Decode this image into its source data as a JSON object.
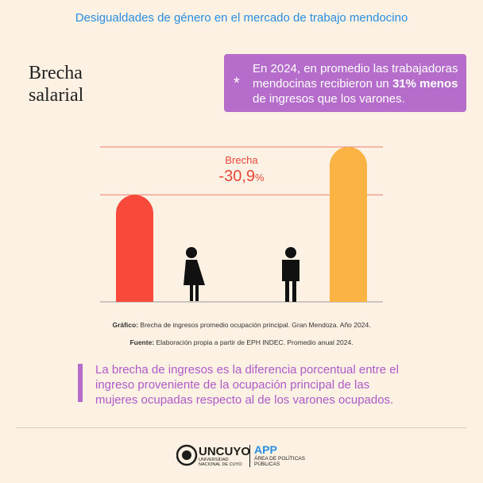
{
  "header": {
    "title": "Desigualdades de género en el mercado de trabajo mendocino"
  },
  "section_title": "Brecha salarial",
  "callout": {
    "text_before": "En 2024, en promedio las trabajadoras mendocinas recibieron un ",
    "highlight": "31% menos",
    "text_after": " de ingresos que los varones."
  },
  "chart_data": {
    "type": "bar",
    "categories": [
      null,
      null
    ],
    "values": [
      69.1,
      100
    ],
    "colors": [
      "#f8493a",
      "#fbb343"
    ],
    "ylim": [
      0,
      100
    ],
    "reference_line_color": "#f07a6c",
    "annotation": {
      "label": "Brecha",
      "value": "-30,9",
      "unit": "%"
    }
  },
  "caption": {
    "chart_label": "Gráfico:",
    "chart_text": " Brecha de ingresos promedio ocupación principal. Gran Mendoza. Año 2024.",
    "source_label": "Fuente:",
    "source_text": " Elaboración propia a partir de EPH INDEC. Promedio anual 2024."
  },
  "note": "La brecha de ingresos es la diferencia porcentual entre el ingreso proveniente de la ocupación principal de las mujeres ocupadas respecto al de los varones ocupados.",
  "footer": {
    "uncuyo": "UNCUYO",
    "uncuyo_sub": "UNIVERSIDAD NACIONAL DE CUYO",
    "app": "APP",
    "app_sub": "ÁREA DE POLÍTICAS PÚBLICAS"
  }
}
